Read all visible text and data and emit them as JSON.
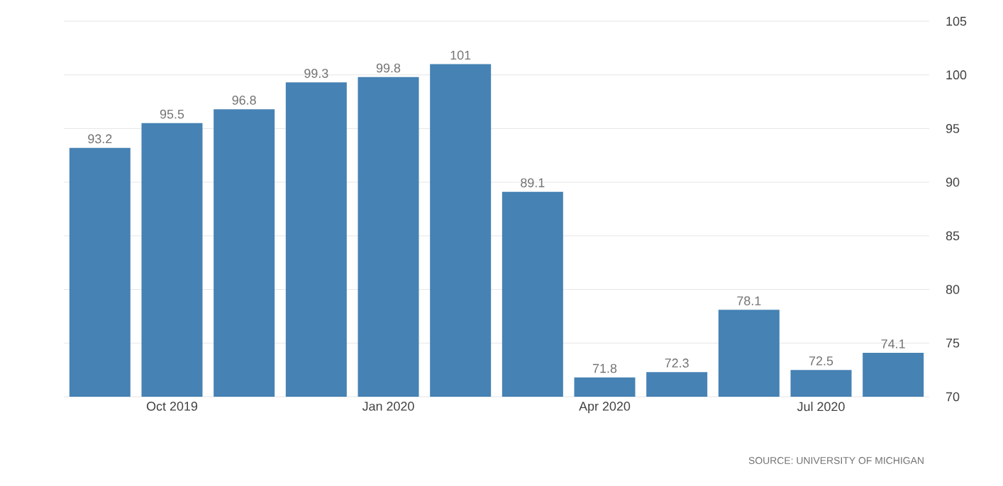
{
  "chart_data": {
    "type": "bar",
    "categories": [
      null,
      "Oct 2019",
      null,
      null,
      "Jan 2020",
      null,
      null,
      "Apr 2020",
      null,
      null,
      "Jul 2020",
      null
    ],
    "values": [
      93.2,
      95.5,
      96.8,
      99.3,
      99.8,
      101,
      89.1,
      71.8,
      72.3,
      78.1,
      72.5,
      74.1
    ],
    "color": "#4682b4",
    "ylim": [
      70,
      105
    ],
    "yticks": [
      70,
      75,
      80,
      85,
      90,
      95,
      100,
      105
    ],
    "grid": "y",
    "data_labels": true,
    "annotations": [
      "SOURCE: UNIVERSITY OF MICHIGAN"
    ]
  }
}
